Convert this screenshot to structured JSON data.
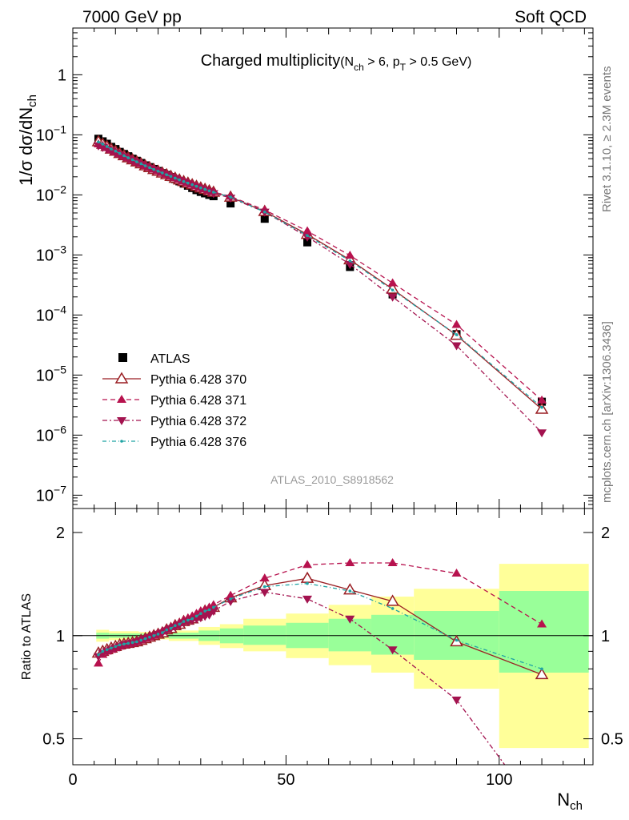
{
  "header": {
    "left": "7000 GeV pp",
    "right": "Soft QCD"
  },
  "side_texts": {
    "rivet": "Rivet 3.1.10, ≥ 2.3M events",
    "mcplots": "mcplots.cern.ch [arXiv:1306.3436]"
  },
  "watermark": "ATLAS_2010_S8918562",
  "colors": {
    "atlas": "#000000",
    "p370": "#9a1f24",
    "p371": "#b7124e",
    "p372": "#a3134f",
    "p376": "#1ea3a3",
    "band_inner": "#99ff99",
    "band_outer": "#ffff99"
  },
  "chart_data": [
    {
      "type": "scatter",
      "scale": "log",
      "title": "Charged multiplicity",
      "title_condition": {
        "a": "(N",
        "a_sub": "ch",
        "b": " > 6, p",
        "b_sub": "T",
        "c": " > 0.5 GeV)"
      },
      "ylabel": "1/σ dσ/dN",
      "ylabel_sub": "ch",
      "xlim": [
        0,
        122
      ],
      "ylim": [
        6e-08,
        6
      ],
      "ytick_labels": [
        {
          "v": 1,
          "base": "1",
          "exp": ""
        },
        {
          "v": 0.1,
          "base": "10",
          "exp": "−1"
        },
        {
          "v": 0.01,
          "base": "10",
          "exp": "−2"
        },
        {
          "v": 0.001,
          "base": "10",
          "exp": "−3"
        },
        {
          "v": 0.0001,
          "base": "10",
          "exp": "−4"
        },
        {
          "v": 1e-05,
          "base": "10",
          "exp": "−5"
        },
        {
          "v": 1e-06,
          "base": "10",
          "exp": "−6"
        },
        {
          "v": 1e-07,
          "base": "10",
          "exp": "−7"
        }
      ],
      "legend": [
        "ATLAS",
        "Pythia 6.428 370",
        "Pythia 6.428 371",
        "Pythia 6.428 372",
        "Pythia 6.428 376"
      ],
      "atlas": {
        "x": [
          6,
          7,
          8,
          9,
          10,
          11,
          12,
          13,
          14,
          15,
          16,
          17,
          18,
          19,
          20,
          21,
          22,
          23,
          24,
          25,
          26,
          27,
          28,
          29,
          30,
          31,
          32,
          33,
          37,
          45,
          55,
          65,
          75,
          90,
          110
        ],
        "y": [
          0.086,
          0.078,
          0.071,
          0.063,
          0.058,
          0.052,
          0.048,
          0.044,
          0.04,
          0.037,
          0.034,
          0.031,
          0.029,
          0.027,
          0.025,
          0.023,
          0.0215,
          0.0198,
          0.0183,
          0.0168,
          0.0154,
          0.0142,
          0.013,
          0.012,
          0.0112,
          0.0106,
          0.01,
          0.0095,
          0.0072,
          0.004,
          0.00162,
          0.00063,
          0.00022,
          4.8e-05,
          3.6e-06
        ]
      },
      "series": [
        {
          "name": "Pythia 6.428 370",
          "x": [
            6,
            7,
            8,
            9,
            10,
            11,
            12,
            13,
            14,
            15,
            16,
            17,
            18,
            19,
            20,
            21,
            22,
            23,
            24,
            25,
            26,
            27,
            28,
            29,
            30,
            31,
            32,
            33,
            37,
            45,
            55,
            65,
            75,
            90,
            110
          ],
          "y": [
            0.077,
            0.07,
            0.064,
            0.058,
            0.0535,
            0.049,
            0.045,
            0.0415,
            0.0385,
            0.0355,
            0.033,
            0.0305,
            0.0285,
            0.0265,
            0.0248,
            0.0232,
            0.0217,
            0.0203,
            0.019,
            0.0178,
            0.0167,
            0.0157,
            0.0148,
            0.0139,
            0.0131,
            0.0124,
            0.0117,
            0.0111,
            0.0092,
            0.0053,
            0.0022,
            0.00083,
            0.00027,
            4.6e-05,
            2.7e-06
          ]
        },
        {
          "name": "Pythia 6.428 371",
          "x": [
            6,
            7,
            8,
            9,
            10,
            11,
            12,
            13,
            14,
            15,
            16,
            17,
            18,
            19,
            20,
            21,
            22,
            23,
            24,
            25,
            26,
            27,
            28,
            29,
            30,
            31,
            32,
            33,
            37,
            45,
            55,
            65,
            75,
            90,
            110
          ],
          "y": [
            0.07,
            0.066,
            0.061,
            0.056,
            0.052,
            0.048,
            0.044,
            0.041,
            0.038,
            0.035,
            0.0328,
            0.0305,
            0.0285,
            0.0266,
            0.0249,
            0.0233,
            0.0218,
            0.0204,
            0.0191,
            0.0179,
            0.0168,
            0.0158,
            0.0149,
            0.014,
            0.0132,
            0.0125,
            0.0118,
            0.0112,
            0.0094,
            0.0056,
            0.0025,
            0.00098,
            0.00034,
            6.9e-05,
            3.8e-06
          ]
        },
        {
          "name": "Pythia 6.428 372",
          "x": [
            6,
            7,
            8,
            9,
            10,
            11,
            12,
            13,
            14,
            15,
            16,
            17,
            18,
            19,
            20,
            21,
            22,
            23,
            24,
            25,
            26,
            27,
            28,
            29,
            30,
            31,
            32,
            33,
            37,
            45,
            55,
            65,
            75,
            90,
            110
          ],
          "y": [
            0.066,
            0.062,
            0.058,
            0.054,
            0.05,
            0.046,
            0.043,
            0.04,
            0.037,
            0.0345,
            0.0322,
            0.03,
            0.028,
            0.0262,
            0.0245,
            0.0229,
            0.0214,
            0.02,
            0.0187,
            0.0175,
            0.0164,
            0.0154,
            0.0144,
            0.0135,
            0.0127,
            0.0119,
            0.0112,
            0.0106,
            0.0089,
            0.0052,
            0.002,
            0.0007,
            0.0002,
            3.1e-05,
            1.1e-06
          ]
        },
        {
          "name": "Pythia 6.428 376",
          "x": [
            6,
            7,
            8,
            9,
            10,
            11,
            12,
            13,
            14,
            15,
            16,
            17,
            18,
            19,
            20,
            21,
            22,
            23,
            24,
            25,
            26,
            27,
            28,
            29,
            30,
            31,
            32,
            33,
            37,
            45,
            55,
            65,
            75,
            90,
            110
          ],
          "y": [
            0.076,
            0.07,
            0.064,
            0.058,
            0.0535,
            0.049,
            0.045,
            0.0415,
            0.0385,
            0.0355,
            0.033,
            0.0305,
            0.0285,
            0.0265,
            0.0248,
            0.0232,
            0.0217,
            0.0203,
            0.019,
            0.0178,
            0.0167,
            0.0157,
            0.0148,
            0.0139,
            0.0131,
            0.0124,
            0.0117,
            0.0111,
            0.0092,
            0.0052,
            0.0021,
            0.0008,
            0.00026,
            4.7e-05,
            2.9e-06
          ]
        }
      ]
    },
    {
      "type": "line",
      "scale": "log",
      "ylabel": "Ratio to ATLAS",
      "xlabel": "N",
      "xlabel_sub": "ch",
      "xlim": [
        0,
        122
      ],
      "ylim": [
        0.42,
        2.35
      ],
      "xtick_labels": [
        "0",
        "50",
        "100"
      ],
      "xtick_values": [
        0,
        50,
        100
      ],
      "ytick_labels": [
        "0.5",
        "1",
        "2"
      ],
      "ytick_values": [
        0.5,
        1,
        2
      ],
      "bands": [
        {
          "x0": 5.5,
          "x1": 8.5,
          "lo_in": 0.98,
          "hi_in": 1.02,
          "lo_out": 0.96,
          "hi_out": 1.04
        },
        {
          "x0": 8.5,
          "x1": 15.5,
          "lo_in": 0.985,
          "hi_in": 1.015,
          "lo_out": 0.97,
          "hi_out": 1.03
        },
        {
          "x0": 15.5,
          "x1": 22.5,
          "lo_in": 0.985,
          "hi_in": 1.015,
          "lo_out": 0.975,
          "hi_out": 1.025
        },
        {
          "x0": 22.5,
          "x1": 29.5,
          "lo_in": 0.98,
          "hi_in": 1.02,
          "lo_out": 0.965,
          "hi_out": 1.035
        },
        {
          "x0": 29.5,
          "x1": 34.5,
          "lo_in": 0.965,
          "hi_in": 1.035,
          "lo_out": 0.94,
          "hi_out": 1.06
        },
        {
          "x0": 34.5,
          "x1": 40,
          "lo_in": 0.95,
          "hi_in": 1.05,
          "lo_out": 0.92,
          "hi_out": 1.08
        },
        {
          "x0": 40,
          "x1": 50,
          "lo_in": 0.94,
          "hi_in": 1.07,
          "lo_out": 0.9,
          "hi_out": 1.12
        },
        {
          "x0": 50,
          "x1": 60,
          "lo_in": 0.92,
          "hi_in": 1.09,
          "lo_out": 0.86,
          "hi_out": 1.16
        },
        {
          "x0": 60,
          "x1": 70,
          "lo_in": 0.9,
          "hi_in": 1.12,
          "lo_out": 0.82,
          "hi_out": 1.23
        },
        {
          "x0": 70,
          "x1": 80,
          "lo_in": 0.88,
          "hi_in": 1.15,
          "lo_out": 0.78,
          "hi_out": 1.3
        },
        {
          "x0": 80,
          "x1": 100,
          "lo_in": 0.85,
          "hi_in": 1.18,
          "lo_out": 0.7,
          "hi_out": 1.37
        },
        {
          "x0": 100,
          "x1": 121,
          "lo_in": 0.78,
          "hi_in": 1.35,
          "lo_out": 0.47,
          "hi_out": 1.62
        }
      ],
      "series": [
        {
          "name": "Pythia 6.428 370",
          "x": [
            6,
            7,
            8,
            9,
            10,
            11,
            12,
            13,
            14,
            15,
            16,
            17,
            18,
            19,
            20,
            21,
            22,
            23,
            24,
            25,
            26,
            27,
            28,
            29,
            30,
            31,
            32,
            33,
            37,
            45,
            55,
            65,
            75,
            90,
            110
          ],
          "y": [
            0.89,
            0.9,
            0.91,
            0.92,
            0.93,
            0.94,
            0.945,
            0.95,
            0.955,
            0.96,
            0.97,
            0.98,
            0.99,
            1.0,
            1.01,
            1.02,
            1.04,
            1.05,
            1.07,
            1.08,
            1.1,
            1.11,
            1.12,
            1.14,
            1.16,
            1.18,
            1.19,
            1.21,
            1.29,
            1.4,
            1.47,
            1.36,
            1.26,
            0.96,
            0.77
          ]
        },
        {
          "name": "Pythia 6.428 371",
          "x": [
            6,
            7,
            8,
            9,
            10,
            11,
            12,
            13,
            14,
            15,
            16,
            17,
            18,
            19,
            20,
            21,
            22,
            23,
            24,
            25,
            26,
            27,
            28,
            29,
            30,
            31,
            32,
            33,
            37,
            45,
            55,
            65,
            75,
            90,
            110
          ],
          "y": [
            0.83,
            0.88,
            0.9,
            0.91,
            0.92,
            0.93,
            0.94,
            0.945,
            0.95,
            0.96,
            0.97,
            0.98,
            0.99,
            1.0,
            1.015,
            1.03,
            1.045,
            1.06,
            1.075,
            1.09,
            1.11,
            1.125,
            1.14,
            1.16,
            1.18,
            1.19,
            1.21,
            1.23,
            1.31,
            1.47,
            1.61,
            1.63,
            1.63,
            1.52,
            1.08
          ]
        },
        {
          "name": "Pythia 6.428 372",
          "x": [
            6,
            7,
            8,
            9,
            10,
            11,
            12,
            13,
            14,
            15,
            16,
            17,
            18,
            19,
            20,
            21,
            22,
            23,
            24,
            25,
            26,
            27,
            28,
            29,
            30,
            31,
            32,
            33,
            37,
            45,
            55,
            65,
            75,
            90,
            110
          ],
          "y": [
            0.87,
            0.89,
            0.9,
            0.91,
            0.92,
            0.93,
            0.94,
            0.945,
            0.95,
            0.96,
            0.97,
            0.98,
            0.99,
            1.0,
            1.01,
            1.02,
            1.035,
            1.05,
            1.06,
            1.075,
            1.09,
            1.1,
            1.11,
            1.12,
            1.13,
            1.14,
            1.15,
            1.18,
            1.26,
            1.34,
            1.28,
            1.12,
            0.91,
            0.65,
            0.3
          ]
        },
        {
          "name": "Pythia 6.428 376",
          "x": [
            6,
            7,
            8,
            9,
            10,
            11,
            12,
            13,
            14,
            15,
            16,
            17,
            18,
            19,
            20,
            21,
            22,
            23,
            24,
            25,
            26,
            27,
            28,
            29,
            30,
            31,
            32,
            33,
            37,
            45,
            55,
            65,
            75,
            90,
            110
          ],
          "y": [
            0.88,
            0.9,
            0.91,
            0.92,
            0.93,
            0.94,
            0.945,
            0.95,
            0.955,
            0.96,
            0.97,
            0.98,
            0.99,
            1.0,
            1.01,
            1.02,
            1.04,
            1.05,
            1.07,
            1.08,
            1.1,
            1.11,
            1.12,
            1.14,
            1.16,
            1.18,
            1.19,
            1.21,
            1.28,
            1.39,
            1.42,
            1.35,
            1.2,
            0.97,
            0.8
          ]
        }
      ]
    }
  ]
}
